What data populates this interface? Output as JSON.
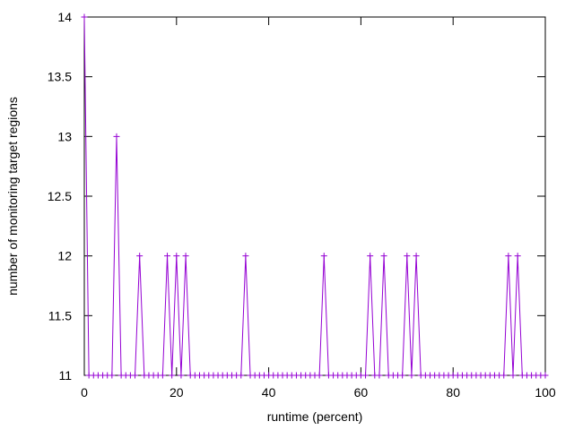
{
  "chart_data": {
    "type": "line",
    "title": "",
    "xlabel": "runtime (percent)",
    "ylabel": "number of monitoring target regions",
    "xlim": [
      0,
      100
    ],
    "ylim": [
      11,
      14
    ],
    "xticks": [
      0,
      20,
      40,
      60,
      80,
      100
    ],
    "yticks": [
      11,
      11.5,
      12,
      12.5,
      13,
      13.5,
      14
    ],
    "ytick_labels": [
      "11",
      "11.5",
      "12",
      "12.5",
      "13",
      "13.5",
      "14"
    ],
    "grid": false,
    "legend": "none",
    "series": [
      {
        "color": "#9400d3",
        "marker": "plus",
        "x": [
          0,
          1,
          2,
          3,
          4,
          5,
          6,
          7,
          8,
          9,
          10,
          11,
          12,
          13,
          14,
          15,
          16,
          17,
          18,
          19,
          20,
          21,
          22,
          23,
          24,
          25,
          26,
          27,
          28,
          29,
          30,
          31,
          32,
          33,
          34,
          35,
          36,
          37,
          38,
          39,
          40,
          41,
          42,
          43,
          44,
          45,
          46,
          47,
          48,
          49,
          50,
          51,
          52,
          53,
          54,
          55,
          56,
          57,
          58,
          59,
          60,
          61,
          62,
          63,
          64,
          65,
          66,
          67,
          68,
          69,
          70,
          71,
          72,
          73,
          74,
          75,
          76,
          77,
          78,
          79,
          80,
          81,
          82,
          83,
          84,
          85,
          86,
          87,
          88,
          89,
          90,
          91,
          92,
          93,
          94,
          95,
          96,
          97,
          98,
          99,
          100
        ],
        "y": [
          14,
          11,
          11,
          11,
          11,
          11,
          11,
          13,
          11,
          11,
          11,
          11,
          12,
          11,
          11,
          11,
          11,
          11,
          12,
          11,
          12,
          11,
          12,
          11,
          11,
          11,
          11,
          11,
          11,
          11,
          11,
          11,
          11,
          11,
          11,
          12,
          11,
          11,
          11,
          11,
          11,
          11,
          11,
          11,
          11,
          11,
          11,
          11,
          11,
          11,
          11,
          11,
          12,
          11,
          11,
          11,
          11,
          11,
          11,
          11,
          11,
          11,
          12,
          11,
          11,
          12,
          11,
          11,
          11,
          11,
          12,
          11,
          12,
          11,
          11,
          11,
          11,
          11,
          11,
          11,
          11,
          11,
          11,
          11,
          11,
          11,
          11,
          11,
          11,
          11,
          11,
          11,
          12,
          11,
          12,
          11,
          11,
          11,
          11,
          11,
          11
        ]
      }
    ]
  }
}
